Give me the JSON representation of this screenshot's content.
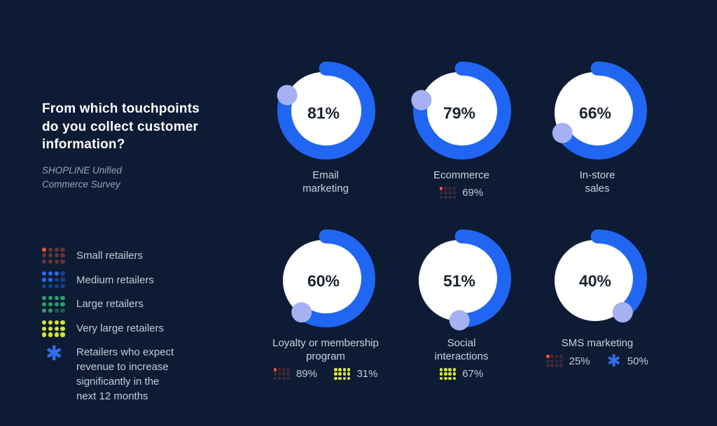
{
  "header": {
    "title": "From which touchpoints\ndo you collect customer\ninformation?",
    "source": "SHOPLINE Unified\nCommerce Survey"
  },
  "colors": {
    "background": "#0d1b34",
    "arc": "#2166f2",
    "knob": "#a6b1f3",
    "donut_face": "#ffffff",
    "percent_text": "#1d2430",
    "label_text": "#ccd3dc",
    "title_text": "#ffffff",
    "subtitle_text": "#9aa4b6"
  },
  "legend": {
    "items": [
      {
        "key": "small",
        "label": "Small retailers",
        "type": "dots",
        "bright": "#f4512c",
        "dull": "#693338",
        "pattern": [
          1,
          0,
          0,
          0,
          0,
          0,
          0,
          0,
          0,
          0,
          0,
          0
        ]
      },
      {
        "key": "medium",
        "label": "Medium retailers",
        "type": "dots",
        "bright": "#2b6cf3",
        "dull": "#16407f",
        "pattern": [
          1,
          1,
          1,
          0,
          1,
          1,
          0,
          0,
          0,
          0,
          0,
          0
        ]
      },
      {
        "key": "large",
        "label": "Large retailers",
        "type": "dots",
        "bright": "#2f9f69",
        "dull": "#1d5c44",
        "pattern": [
          1,
          1,
          1,
          1,
          1,
          1,
          1,
          1,
          1,
          1,
          0,
          0
        ]
      },
      {
        "key": "very_large",
        "label": "Very large retailers",
        "type": "dots",
        "bright": "#d9e62f",
        "dull": "#8a9a23",
        "pattern": [
          1,
          1,
          1,
          1,
          1,
          1,
          1,
          1,
          1,
          1,
          1,
          1
        ]
      },
      {
        "key": "asterisk",
        "label": "Retailers who expect\nrevenue to increase\nsignificantly in the\nnext 12 months",
        "type": "asterisk",
        "color": "#2d6ff0"
      }
    ]
  },
  "chart_data": {
    "type": "donut",
    "unit": "%",
    "question": "From which touchpoints do you collect customer information?",
    "arc_start": "top",
    "arc_direction": "clockwise",
    "value_range": [
      0,
      100
    ],
    "items": [
      {
        "label": "Email\nmarketing",
        "value": 81,
        "sub_stats": []
      },
      {
        "label": "Ecommerce",
        "value": 79,
        "sub_stats": [
          {
            "group": "small",
            "value": 69
          }
        ]
      },
      {
        "label": "In-store\nsales",
        "value": 66,
        "sub_stats": []
      },
      {
        "label": "Loyalty or membership\nprogram",
        "value": 60,
        "sub_stats": [
          {
            "group": "small",
            "value": 89
          },
          {
            "group": "very_large",
            "value": 31
          }
        ]
      },
      {
        "label": "Social\ninteractions",
        "value": 51,
        "sub_stats": [
          {
            "group": "very_large",
            "value": 67
          }
        ]
      },
      {
        "label": "SMS marketing",
        "value": 40,
        "sub_stats": [
          {
            "group": "small",
            "value": 25
          },
          {
            "group": "asterisk",
            "value": 50
          }
        ]
      }
    ]
  }
}
